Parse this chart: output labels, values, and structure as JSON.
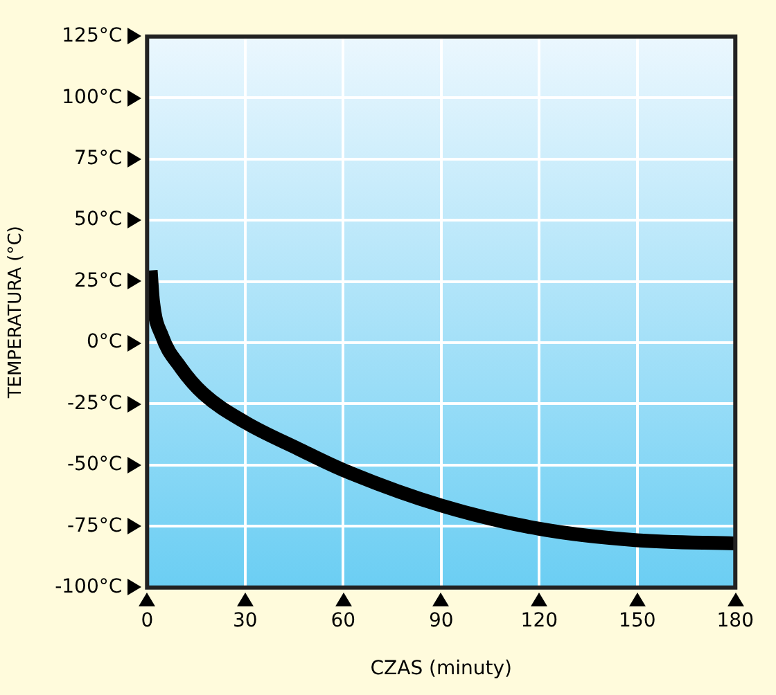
{
  "chart_data": {
    "type": "line",
    "xlabel": "CZAS (minuty)",
    "ylabel": "TEMPERATURA (°C)",
    "x": [
      1.1,
      1.8,
      4.6,
      10.2,
      17.2,
      30,
      46.5,
      60,
      90,
      120,
      150,
      180
    ],
    "series": [
      {
        "color": "#000000",
        "values": [
          29.5,
          17,
          2.6,
          -10,
          -20.8,
          -32.5,
          -43.5,
          -52,
          -66.5,
          -76,
          -80.7,
          -82
        ]
      }
    ],
    "xlim": [
      0,
      180
    ],
    "xticks": [
      0,
      30,
      60,
      90,
      120,
      150,
      180
    ],
    "ylim": [
      -100,
      125
    ],
    "yticks": [
      {
        "value": -100,
        "label": "-100°C"
      },
      {
        "value": -75,
        "label": "-75°C"
      },
      {
        "value": -50,
        "label": "-50°C"
      },
      {
        "value": -25,
        "label": "-25°C"
      },
      {
        "value": 0,
        "label": "0°C"
      },
      {
        "value": 25,
        "label": "25°C"
      },
      {
        "value": 50,
        "label": "50°C"
      },
      {
        "value": 75,
        "label": "75°C"
      },
      {
        "value": 100,
        "label": "100°C"
      },
      {
        "value": 125,
        "label": "125°C"
      }
    ],
    "grid": true,
    "marker": "none",
    "line_style": "solid",
    "legend": false
  }
}
